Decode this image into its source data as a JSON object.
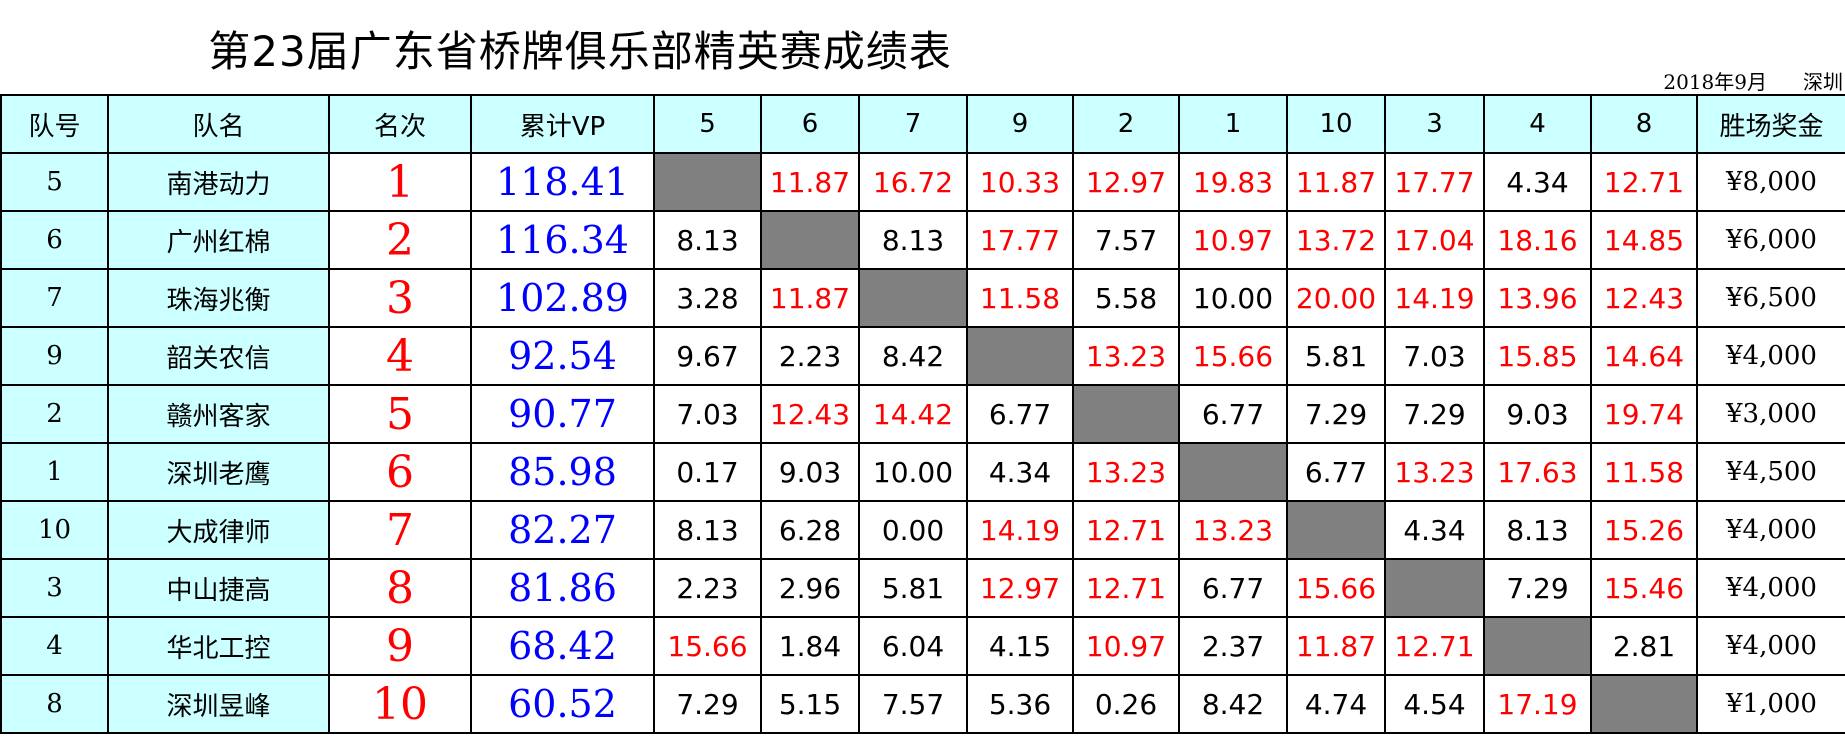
{
  "title": "第23届广东省桥牌俱乐部精英赛成绩表",
  "subtitle": {
    "date": "2018年9月",
    "place": "深圳"
  },
  "headers": [
    "队号",
    "队名",
    "名次",
    "累计VP",
    "5",
    "6",
    "7",
    "9",
    "2",
    "1",
    "10",
    "3",
    "4",
    "8",
    "胜场奖金"
  ],
  "rows": [
    {
      "team_no": "5",
      "team_name": "南港动力",
      "rank": "1",
      "vp": "118.41",
      "scores": [
        null,
        "11.87",
        "16.72",
        "10.33",
        "12.97",
        "19.83",
        "11.87",
        "17.77",
        "4.34",
        "12.71"
      ],
      "prize": "¥8,000"
    },
    {
      "team_no": "6",
      "team_name": "广州红棉",
      "rank": "2",
      "vp": "116.34",
      "scores": [
        "8.13",
        null,
        "8.13",
        "17.77",
        "7.57",
        "10.97",
        "13.72",
        "17.04",
        "18.16",
        "14.85"
      ],
      "prize": "¥6,000"
    },
    {
      "team_no": "7",
      "team_name": "珠海兆衡",
      "rank": "3",
      "vp": "102.89",
      "scores": [
        "3.28",
        "11.87",
        null,
        "11.58",
        "5.58",
        "10.00",
        "20.00",
        "14.19",
        "13.96",
        "12.43"
      ],
      "prize": "¥6,500"
    },
    {
      "team_no": "9",
      "team_name": "韶关农信",
      "rank": "4",
      "vp": "92.54",
      "scores": [
        "9.67",
        "2.23",
        "8.42",
        null,
        "13.23",
        "15.66",
        "5.81",
        "7.03",
        "15.85",
        "14.64"
      ],
      "prize": "¥4,000"
    },
    {
      "team_no": "2",
      "team_name": "赣州客家",
      "rank": "5",
      "vp": "90.77",
      "scores": [
        "7.03",
        "12.43",
        "14.42",
        "6.77",
        null,
        "6.77",
        "7.29",
        "7.29",
        "9.03",
        "19.74"
      ],
      "prize": "¥3,000"
    },
    {
      "team_no": "1",
      "team_name": "深圳老鹰",
      "rank": "6",
      "vp": "85.98",
      "scores": [
        "0.17",
        "9.03",
        "10.00",
        "4.34",
        "13.23",
        null,
        "6.77",
        "13.23",
        "17.63",
        "11.58"
      ],
      "prize": "¥4,500"
    },
    {
      "team_no": "10",
      "team_name": "大成律师",
      "rank": "7",
      "vp": "82.27",
      "scores": [
        "8.13",
        "6.28",
        "0.00",
        "14.19",
        "12.71",
        "13.23",
        null,
        "4.34",
        "8.13",
        "15.26"
      ],
      "prize": "¥4,000"
    },
    {
      "team_no": "3",
      "team_name": "中山捷高",
      "rank": "8",
      "vp": "81.86",
      "scores": [
        "2.23",
        "2.96",
        "5.81",
        "12.97",
        "12.71",
        "6.77",
        "15.66",
        null,
        "7.29",
        "15.46"
      ],
      "prize": "¥4,000"
    },
    {
      "team_no": "4",
      "team_name": "华北工控",
      "rank": "9",
      "vp": "68.42",
      "scores": [
        "15.66",
        "1.84",
        "6.04",
        "4.15",
        "10.97",
        "2.37",
        "11.87",
        "12.71",
        null,
        "2.81"
      ],
      "prize": "¥4,000"
    },
    {
      "team_no": "8",
      "team_name": "深圳昱峰",
      "rank": "10",
      "vp": "60.52",
      "scores": [
        "7.29",
        "5.15",
        "7.57",
        "5.36",
        "0.26",
        "8.42",
        "4.74",
        "4.54",
        "17.19",
        null
      ],
      "prize": "¥1,000"
    }
  ],
  "colors": {
    "header_bg": "#ccffff",
    "win": "#ff0000",
    "lose": "#000000",
    "vp": "#0000ff",
    "rank": "#ff0000",
    "diagonal": "#808080"
  }
}
